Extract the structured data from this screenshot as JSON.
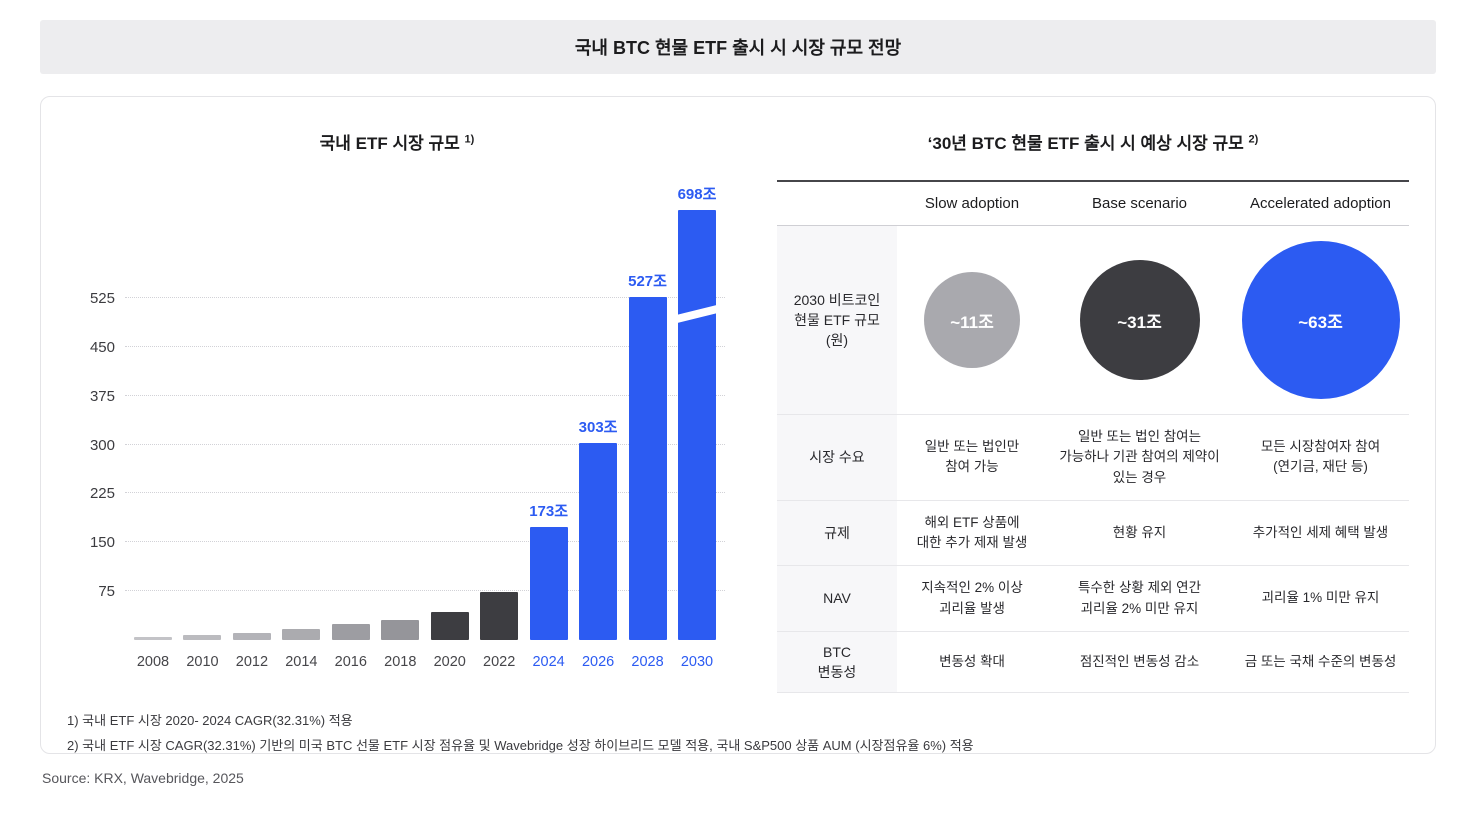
{
  "header": {
    "title": "국내 BTC 현물 ETF 출시 시 시장 규모 전망"
  },
  "footnotes": [
    "1) 국내 ETF 시장 2020- 2024 CAGR(32.31%) 적용",
    "2) 국내 ETF 시장 CAGR(32.31%) 기반의 미국 BTC 선물 ETF 시장 점유율 및 Wavebridge 성장 하이브리드 모델 적용, 국내 S&P500 상품 AUM (시장점유율 6%) 적용"
  ],
  "source": "Source: KRX, Wavebridge, 2025",
  "colors": {
    "accent_blue": "#2c5bf2",
    "dark_gray": "#3d3d41",
    "light_gray": "#a9a9ae",
    "band_bg": "#ededef"
  },
  "chart_data": [
    {
      "type": "bar",
      "title": "국내 ETF 시장 규모",
      "title_sup": "1)",
      "unit": "조 (KRW trillion)",
      "categories": [
        "2008",
        "2010",
        "2012",
        "2014",
        "2016",
        "2018",
        "2020",
        "2022",
        "2024",
        "2026",
        "2028",
        "2030"
      ],
      "values": [
        4,
        8,
        11,
        17,
        24,
        30,
        43,
        73,
        173,
        303,
        527,
        698
      ],
      "colors": [
        "#c3c3c7",
        "#bbbbbf",
        "#b3b3b8",
        "#ababaf",
        "#9d9da2",
        "#95959a",
        "#3d3d41",
        "#3d3d41",
        "#2c5bf2",
        "#2c5bf2",
        "#2c5bf2",
        "#2c5bf2"
      ],
      "data_labels": {
        "2024": "173조",
        "2026": "303조",
        "2028": "527조",
        "2030": "698조"
      },
      "yticks": [
        75,
        150,
        225,
        300,
        375,
        450,
        525
      ],
      "ylim": [
        0,
        560
      ],
      "break_category": "2030",
      "axis_break_note": "2030 bar truncated with diagonal break marker",
      "grid": "dotted-horizontal",
      "highlight_color": "#2c5bf2"
    },
    {
      "type": "table",
      "title": "‘30년 BTC 현물 ETF 출시 시 예상 시장 규모",
      "title_sup": "2)",
      "columns": [
        "Slow adoption",
        "Base scenario",
        "Accelerated adoption"
      ],
      "rows": [
        {
          "label": "2030 비트코인\n현물 ETF 규모\n(원)",
          "kind": "bubbles",
          "cells": [
            "~11조",
            "~31조",
            "~63조"
          ],
          "bubble_colors": [
            "#a9a9ae",
            "#3d3d41",
            "#2c5bf2"
          ],
          "bubble_sizes": [
            96,
            120,
            158
          ]
        },
        {
          "label": "시장 수요",
          "cells": [
            "일반 또는 법인만\n참여 가능",
            "일반 또는 법인 참여는\n가능하나 기관 참여의 제약이\n있는 경우",
            "모든 시장참여자 참여\n(연기금, 재단 등)"
          ]
        },
        {
          "label": "규제",
          "cells": [
            "해외 ETF 상품에\n대한 추가 제재 발생",
            "현황 유지",
            "추가적인 세제 혜택 발생"
          ]
        },
        {
          "label": "NAV",
          "cells": [
            "지속적인 2% 이상\n괴리율 발생",
            "특수한 상황 제외 연간\n괴리율 2% 미만 유지",
            "괴리율 1% 미만 유지"
          ]
        },
        {
          "label": "BTC\n변동성",
          "cells": [
            "변동성 확대",
            "점진적인 변동성 감소",
            "금 또는 국채 수준의 변동성"
          ]
        }
      ]
    }
  ]
}
